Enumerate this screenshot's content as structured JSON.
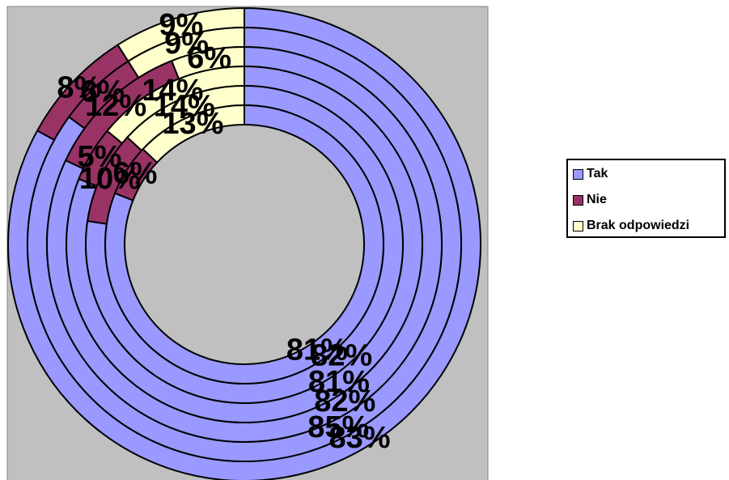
{
  "colors": {
    "plot_background": "#c0c0c0",
    "plot_border": "#808080",
    "tak": "#9999ff",
    "nie": "#993366",
    "brak": "#ffffcc"
  },
  "chart_data": {
    "type": "doughnut",
    "title": "",
    "categories": [
      "Tak",
      "Nie",
      "Brak odpowiedzi"
    ],
    "rings_outer_to_inner": [
      {
        "values": [
          83,
          8,
          9
        ],
        "labels": [
          "83%",
          "8%",
          "9%"
        ]
      },
      {
        "values": [
          85,
          6,
          9
        ],
        "labels": [
          "85%",
          "6%",
          "9%"
        ]
      },
      {
        "values": [
          82,
          12,
          6
        ],
        "labels": [
          "82%",
          "12%",
          "6%"
        ]
      },
      {
        "values": [
          81,
          5,
          14
        ],
        "labels": [
          "81%",
          "5%",
          "14%"
        ]
      },
      {
        "values": [
          82,
          10,
          14
        ],
        "labels": [
          "82%",
          "10%",
          "14%"
        ]
      },
      {
        "values": [
          81,
          6,
          13
        ],
        "labels": [
          "81%",
          "6%",
          "13%"
        ]
      }
    ],
    "legend": {
      "position": "right",
      "entries": [
        {
          "label": "Tak",
          "color": "#9999ff"
        },
        {
          "label": "Nie",
          "color": "#993366"
        },
        {
          "label": "Brak odpowiedzi",
          "color": "#ffffcc"
        }
      ]
    }
  }
}
